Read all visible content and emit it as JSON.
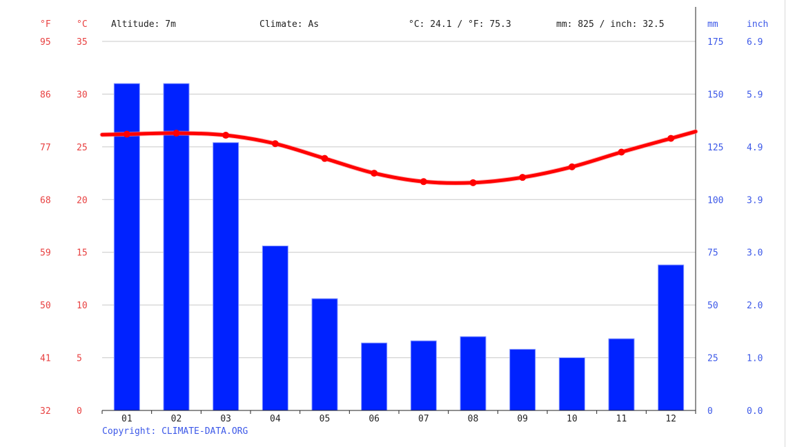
{
  "header": {
    "unit_f": "°F",
    "unit_c": "°C",
    "altitude": "Altitude: 7m",
    "climate": "Climate: As",
    "temp_summary": "°C: 24.1 / °F: 75.3",
    "precip_summary": "mm: 825 / inch: 32.5",
    "unit_mm": "mm",
    "unit_inch": "inch"
  },
  "footer": {
    "copyright": "Copyright: CLIMATE-DATA.ORG"
  },
  "colors": {
    "bar": "#0022ff",
    "temp_line": "#ff0000",
    "axis_red": "#e84040",
    "axis_blue": "#3c58e8",
    "grid": "#c8c8c8"
  },
  "chart_data": {
    "type": "bar",
    "categories": [
      "01",
      "02",
      "03",
      "04",
      "05",
      "06",
      "07",
      "08",
      "09",
      "10",
      "11",
      "12"
    ],
    "series": [
      {
        "values": [
          155,
          155,
          127,
          78,
          53,
          32,
          33,
          35,
          29,
          25,
          34,
          69
        ],
        "type": "bar",
        "axis": "right"
      },
      {
        "values": [
          26.2,
          26.3,
          26.1,
          25.3,
          23.9,
          22.5,
          21.7,
          21.6,
          22.1,
          23.1,
          24.5,
          25.8
        ],
        "type": "line",
        "axis": "left"
      }
    ],
    "axes": {
      "left_c": {
        "ticks": [
          0,
          5,
          10,
          15,
          20,
          25,
          30,
          35
        ],
        "range": [
          0,
          35
        ]
      },
      "left_f": {
        "ticks": [
          "32",
          "41",
          "50",
          "59",
          "68",
          "77",
          "86",
          "95"
        ]
      },
      "right_mm": {
        "ticks": [
          0,
          25,
          50,
          75,
          100,
          125,
          150,
          175
        ],
        "range": [
          0,
          175
        ]
      },
      "right_inch": {
        "ticks": [
          "0.0",
          "1.0",
          "2.0",
          "3.0",
          "3.9",
          "4.9",
          "5.9",
          "6.9"
        ]
      }
    },
    "grid": true
  }
}
